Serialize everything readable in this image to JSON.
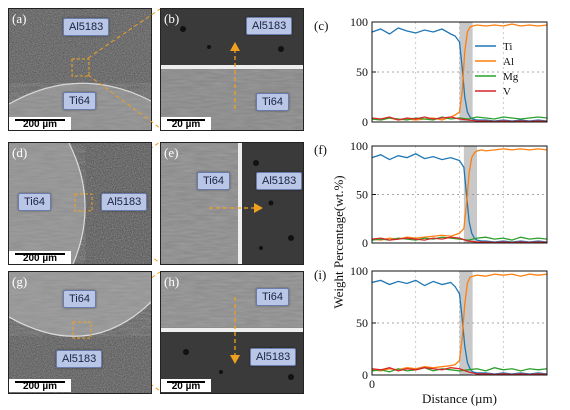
{
  "panels": {
    "a": {
      "label": "(a)",
      "top_phase": "Al5183",
      "bottom_phase": "Ti64",
      "scale": "200 µm"
    },
    "b": {
      "label": "(b)",
      "top_phase": "Al5183",
      "bottom_phase": "Ti64",
      "scale": "20 µm"
    },
    "d": {
      "label": "(d)",
      "left_phase": "Ti64",
      "right_phase": "Al5183",
      "scale": "200 µm"
    },
    "e": {
      "label": "(e)",
      "left_phase": "Ti64",
      "right_phase": "Al5183"
    },
    "g": {
      "label": "(g)",
      "top_phase": "Ti64",
      "bottom_phase": "Al5183",
      "scale": "200 µm"
    },
    "h": {
      "label": "(h)",
      "top_phase": "Ti64",
      "bottom_phase": "Al5183",
      "scale": "20 µm"
    }
  },
  "chart_data": [
    {
      "type": "line",
      "panel_label": "(c)",
      "xlim": [
        0,
        20
      ],
      "ylim": [
        0,
        100
      ],
      "yticks": [
        0,
        50,
        100
      ],
      "interface_band": [
        10,
        11.5
      ],
      "series": [
        {
          "name": "Ti",
          "color": "#1f77b4",
          "x": [
            0,
            1,
            2,
            3,
            4,
            5,
            6,
            7,
            8,
            9,
            9.5,
            10,
            10.3,
            10.6,
            10.9,
            11.2,
            11.5,
            12,
            13,
            14,
            15,
            16,
            17,
            18,
            19,
            20
          ],
          "y": [
            90,
            93,
            88,
            94,
            91,
            89,
            92,
            90,
            93,
            88,
            86,
            80,
            55,
            25,
            10,
            5,
            3,
            2,
            2,
            1,
            2,
            1,
            2,
            1,
            2,
            1
          ]
        },
        {
          "name": "Al",
          "color": "#ff7f0e",
          "x": [
            0,
            1,
            2,
            3,
            4,
            5,
            6,
            7,
            8,
            9,
            9.5,
            10,
            10.3,
            10.6,
            10.9,
            11.2,
            11.5,
            12,
            13,
            14,
            15,
            16,
            17,
            18,
            19,
            20
          ],
          "y": [
            3,
            2,
            4,
            2,
            3,
            2,
            3,
            4,
            2,
            5,
            7,
            10,
            30,
            70,
            90,
            95,
            96,
            97,
            96,
            97,
            96,
            98,
            96,
            97,
            96,
            97
          ]
        },
        {
          "name": "Mg",
          "color": "#2ca02c",
          "x": [
            0,
            1,
            2,
            3,
            4,
            5,
            6,
            7,
            8,
            9,
            10,
            11,
            12,
            13,
            14,
            15,
            16,
            17,
            18,
            19,
            20
          ],
          "y": [
            3,
            2,
            4,
            3,
            2,
            4,
            3,
            2,
            5,
            3,
            4,
            3,
            5,
            4,
            3,
            5,
            4,
            3,
            4,
            5,
            4
          ]
        },
        {
          "name": "V",
          "color": "#d62728",
          "x": [
            0,
            1,
            2,
            3,
            4,
            5,
            6,
            7,
            8,
            9,
            10,
            11,
            12,
            13,
            14,
            15,
            16,
            17,
            18,
            19,
            20
          ],
          "y": [
            4,
            3,
            5,
            2,
            4,
            3,
            5,
            3,
            4,
            5,
            3,
            2,
            1,
            1,
            0.5,
            1,
            0.5,
            1,
            0.5,
            1,
            0.5
          ]
        }
      ]
    },
    {
      "type": "line",
      "panel_label": "(f)",
      "xlim": [
        0,
        20
      ],
      "ylim": [
        0,
        100
      ],
      "yticks": [
        0,
        50,
        100
      ],
      "interface_band": [
        10.5,
        12
      ],
      "series": [
        {
          "name": "Ti",
          "color": "#1f77b4",
          "x": [
            0,
            1,
            2,
            3,
            4,
            5,
            6,
            7,
            8,
            9,
            10,
            10.5,
            10.8,
            11.1,
            11.4,
            11.7,
            12,
            12.5,
            13,
            14,
            15,
            16,
            17,
            18,
            19,
            20
          ],
          "y": [
            88,
            91,
            86,
            90,
            88,
            92,
            87,
            89,
            86,
            88,
            85,
            78,
            50,
            22,
            10,
            5,
            3,
            2,
            2,
            1,
            2,
            1,
            2,
            1,
            2,
            1
          ]
        },
        {
          "name": "Al",
          "color": "#ff7f0e",
          "x": [
            0,
            1,
            2,
            3,
            4,
            5,
            6,
            7,
            8,
            9,
            10,
            10.5,
            10.8,
            11.1,
            11.4,
            11.7,
            12,
            12.5,
            13,
            14,
            15,
            16,
            17,
            18,
            19,
            20
          ],
          "y": [
            4,
            3,
            5,
            4,
            6,
            5,
            6,
            7,
            8,
            7,
            10,
            15,
            40,
            72,
            88,
            93,
            95,
            96,
            95,
            96,
            97,
            96,
            97,
            96,
            97,
            96
          ]
        },
        {
          "name": "Mg",
          "color": "#2ca02c",
          "x": [
            0,
            1,
            2,
            3,
            4,
            5,
            6,
            7,
            8,
            9,
            10,
            11,
            12,
            13,
            14,
            15,
            16,
            17,
            18,
            19,
            20
          ],
          "y": [
            3,
            4,
            3,
            5,
            4,
            3,
            5,
            4,
            6,
            5,
            4,
            3,
            5,
            6,
            4,
            5,
            3,
            6,
            4,
            5,
            4
          ]
        },
        {
          "name": "V",
          "color": "#d62728",
          "x": [
            0,
            1,
            2,
            3,
            4,
            5,
            6,
            7,
            8,
            9,
            10,
            11,
            12,
            13,
            14,
            15,
            16,
            17,
            18,
            19,
            20
          ],
          "y": [
            4,
            5,
            3,
            4,
            5,
            4,
            3,
            5,
            4,
            6,
            5,
            2,
            1,
            1,
            0.5,
            1,
            0.5,
            1,
            0.5,
            1,
            0.5
          ]
        }
      ]
    },
    {
      "type": "line",
      "panel_label": "(i)",
      "xlim": [
        0,
        20
      ],
      "ylim": [
        0,
        100
      ],
      "yticks": [
        0,
        50,
        100
      ],
      "xticks": [
        0
      ],
      "xlabel": "Distance (µm)",
      "interface_band": [
        10,
        11.5
      ],
      "series": [
        {
          "name": "Ti",
          "color": "#1f77b4",
          "x": [
            0,
            1,
            2,
            3,
            4,
            5,
            6,
            7,
            8,
            9,
            9.5,
            10,
            10.3,
            10.6,
            10.9,
            11.2,
            11.5,
            12,
            13,
            14,
            15,
            16,
            17,
            18,
            19,
            20
          ],
          "y": [
            89,
            91,
            87,
            90,
            88,
            91,
            86,
            90,
            87,
            89,
            85,
            78,
            55,
            28,
            12,
            6,
            3,
            2,
            2,
            1,
            2,
            1,
            2,
            1,
            2,
            1
          ]
        },
        {
          "name": "Al",
          "color": "#ff7f0e",
          "x": [
            0,
            1,
            2,
            3,
            4,
            5,
            6,
            7,
            8,
            9,
            9.5,
            10,
            10.3,
            10.6,
            10.9,
            11.2,
            11.5,
            12,
            13,
            14,
            15,
            16,
            17,
            18,
            19,
            20
          ],
          "y": [
            5,
            4,
            6,
            5,
            7,
            6,
            8,
            7,
            8,
            9,
            10,
            14,
            35,
            68,
            88,
            94,
            95,
            96,
            95,
            97,
            96,
            97,
            95,
            97,
            96,
            97
          ]
        },
        {
          "name": "Mg",
          "color": "#2ca02c",
          "x": [
            0,
            1,
            2,
            3,
            4,
            5,
            6,
            7,
            8,
            9,
            10,
            11,
            12,
            13,
            14,
            15,
            16,
            17,
            18,
            19,
            20
          ],
          "y": [
            4,
            5,
            3,
            6,
            4,
            5,
            7,
            4,
            6,
            5,
            4,
            5,
            6,
            4,
            7,
            5,
            6,
            4,
            6,
            5,
            6
          ]
        },
        {
          "name": "V",
          "color": "#d62728",
          "x": [
            0,
            1,
            2,
            3,
            4,
            5,
            6,
            7,
            8,
            9,
            10,
            11,
            12,
            13,
            14,
            15,
            16,
            17,
            18,
            19,
            20
          ],
          "y": [
            6,
            5,
            7,
            4,
            6,
            5,
            7,
            6,
            5,
            7,
            6,
            3,
            1,
            1,
            0.5,
            1,
            0.5,
            1,
            0.5,
            1,
            0.5
          ]
        }
      ]
    }
  ],
  "ylabel": "Weight Percentage(wt.%)",
  "legend_position": "right"
}
